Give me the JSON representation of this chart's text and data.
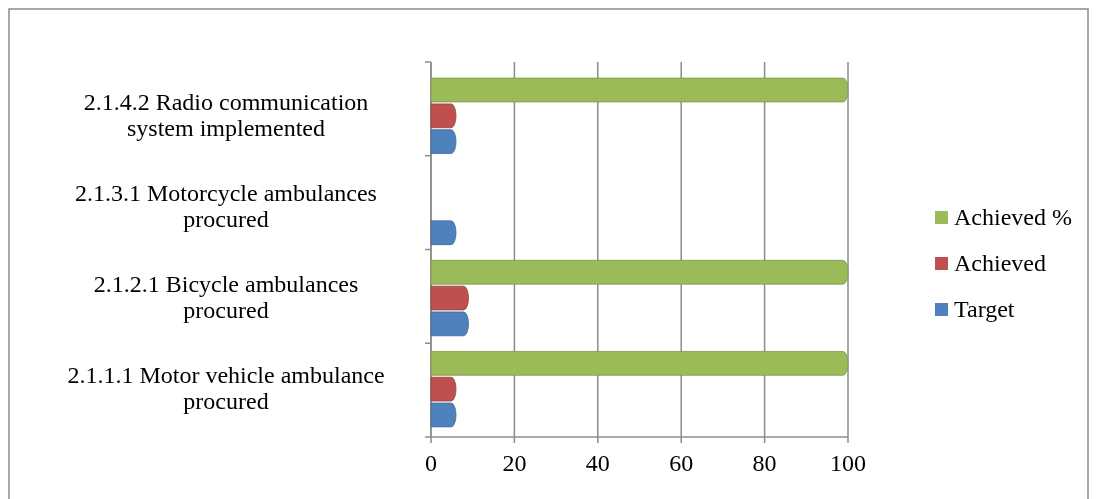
{
  "chart_data": {
    "type": "bar",
    "orientation": "horizontal",
    "categories": [
      "2.1.4.2 Radio communication system implemented",
      "2.1.3.1 Motorcycle ambulances procured",
      "2.1.2.1 Bicycle ambulances procured",
      "2.1.1.1 Motor vehicle ambulance procured"
    ],
    "series": [
      {
        "name": "Target",
        "color": "#4f81bd",
        "values": [
          6,
          6,
          9,
          6
        ]
      },
      {
        "name": "Achieved",
        "color": "#c0504d",
        "values": [
          6,
          0,
          9,
          6
        ]
      },
      {
        "name": "Achieved %",
        "color": "#9bbb59",
        "values": [
          100,
          0,
          100,
          100
        ]
      }
    ],
    "xlim": [
      0,
      100
    ],
    "xticks": [
      0,
      20,
      40,
      60,
      80,
      100
    ],
    "grid": "x",
    "legend": "right"
  }
}
